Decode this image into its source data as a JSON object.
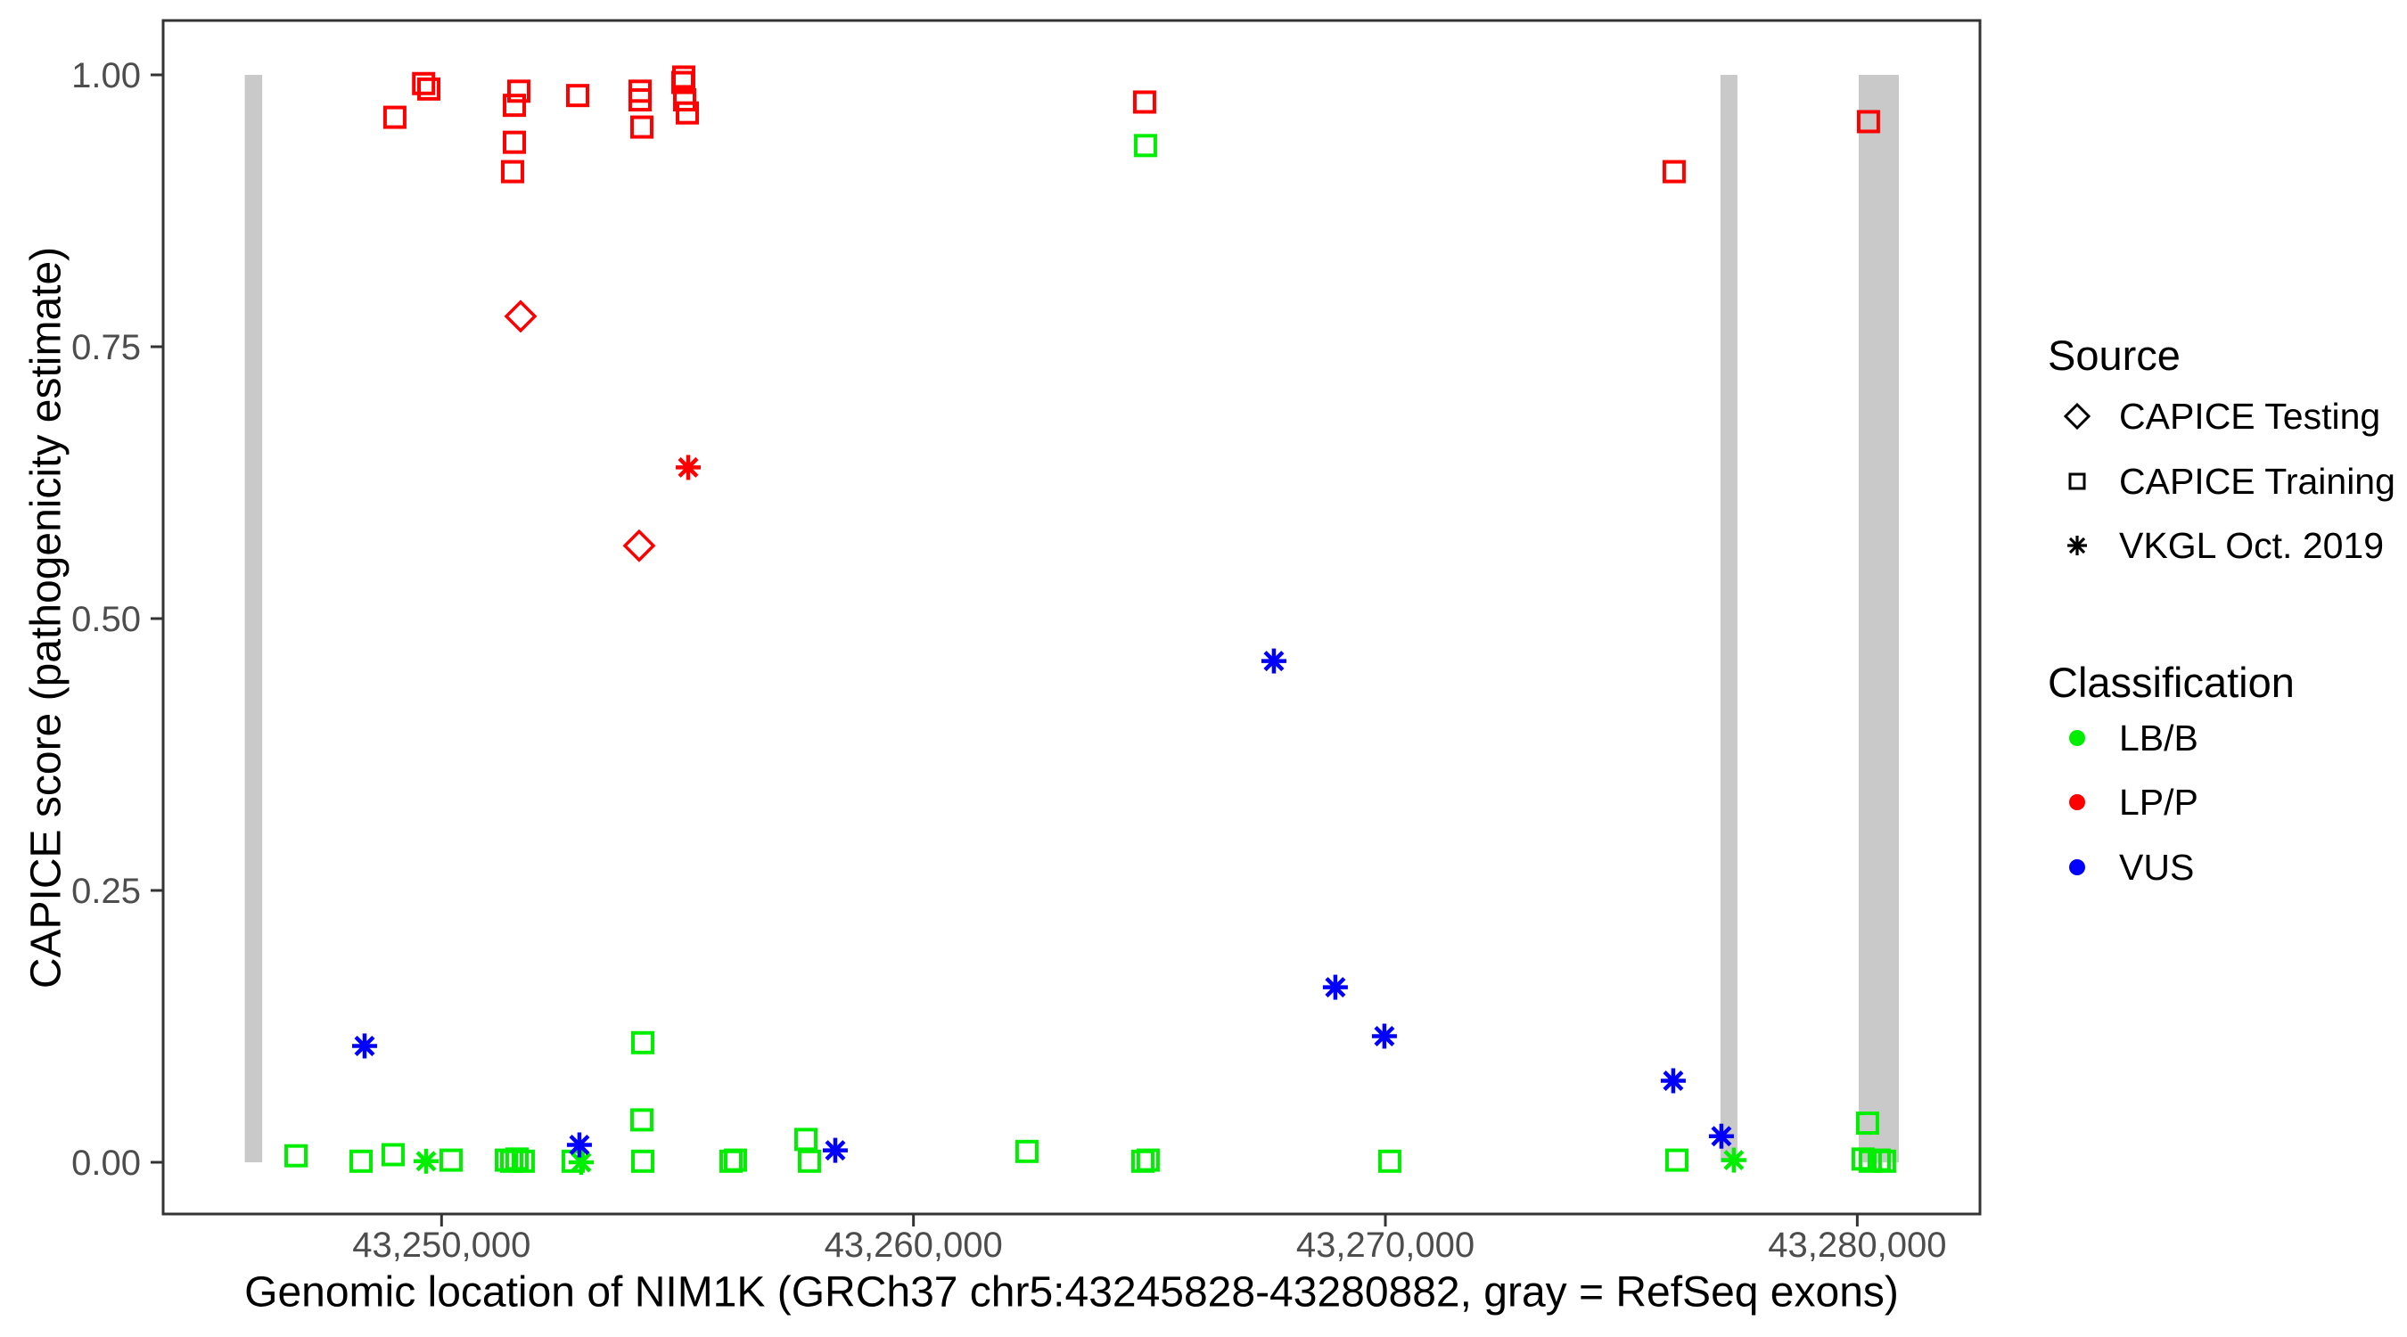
{
  "figure": {
    "x_axis": {
      "title": "Genomic location of NIM1K (GRCh37 chr5:43245828-43280882, gray = RefSeq exons)",
      "ticks": [
        {
          "label": "43,250,000",
          "value": 43250000
        },
        {
          "label": "43,260,000",
          "value": 43260000
        },
        {
          "label": "43,270,000",
          "value": 43270000
        },
        {
          "label": "43,280,000",
          "value": 43280000
        }
      ]
    },
    "y_axis": {
      "title": "CAPICE score (pathogenicity estimate)",
      "ticks": [
        {
          "label": "0.00",
          "value": 0.0
        },
        {
          "label": "0.25",
          "value": 0.25
        },
        {
          "label": "0.50",
          "value": 0.5
        },
        {
          "label": "0.75",
          "value": 0.75
        },
        {
          "label": "1.00",
          "value": 1.0
        }
      ]
    }
  },
  "legend": {
    "position": "right",
    "source": {
      "title": "Source",
      "items": [
        {
          "label": "CAPICE Testing",
          "symbol": "diamond"
        },
        {
          "label": "CAPICE Training",
          "symbol": "square"
        },
        {
          "label": "VKGL Oct. 2019",
          "symbol": "asterisk"
        }
      ]
    },
    "classification": {
      "title": "Classification",
      "items": [
        {
          "label": "LB/B",
          "color": "#00EE00"
        },
        {
          "label": "LP/P",
          "color": "#FF0000"
        },
        {
          "label": "VUS",
          "color": "#0000FF"
        }
      ]
    }
  },
  "colors": {
    "lb_b": "#00EE00",
    "lp_p": "#FF0000",
    "vus": "#0000FF",
    "legend_symbol": "#000000",
    "exon": "#C9C9C9",
    "panel_border": "#333333",
    "tick_label": "#4D4D4D"
  },
  "chart_data": {
    "type": "scatter",
    "title": "",
    "xlabel": "Genomic location of NIM1K (GRCh37 chr5:43245828-43280882, gray = RefSeq exons)",
    "ylabel": "CAPICE score (pathogenicity estimate)",
    "x_domain": [
      43244100,
      43282600
    ],
    "y_domain": [
      0,
      1
    ],
    "grid": false,
    "shape_by_source": {
      "CAPICE Testing": "diamond",
      "CAPICE Training": "square",
      "VKGL Oct. 2019": "asterisk"
    },
    "exons_gray": [
      {
        "start": 43245830,
        "end": 43246200
      },
      {
        "start": 43277100,
        "end": 43277460
      },
      {
        "start": 43280030,
        "end": 43280882
      }
    ],
    "points": [
      {
        "bp": 43249010,
        "score": 0.961,
        "source": "CAPICE Training",
        "classification": "LP/P"
      },
      {
        "bp": 43249620,
        "score": 0.992,
        "source": "CAPICE Training",
        "classification": "LP/P"
      },
      {
        "bp": 43249730,
        "score": 0.987,
        "source": "CAPICE Training",
        "classification": "LP/P"
      },
      {
        "bp": 43251505,
        "score": 0.911,
        "source": "CAPICE Training",
        "classification": "LP/P"
      },
      {
        "bp": 43251543,
        "score": 0.938,
        "source": "CAPICE Training",
        "classification": "LP/P"
      },
      {
        "bp": 43251543,
        "score": 0.972,
        "source": "CAPICE Training",
        "classification": "LP/P"
      },
      {
        "bp": 43251637,
        "score": 0.985,
        "source": "CAPICE Training",
        "classification": "LP/P"
      },
      {
        "bp": 43252884,
        "score": 0.981,
        "source": "CAPICE Training",
        "classification": "LP/P"
      },
      {
        "bp": 43254206,
        "score": 0.985,
        "source": "CAPICE Training",
        "classification": "LP/P"
      },
      {
        "bp": 43254206,
        "score": 0.977,
        "source": "CAPICE Training",
        "classification": "LP/P"
      },
      {
        "bp": 43254244,
        "score": 0.952,
        "source": "CAPICE Training",
        "classification": "LP/P"
      },
      {
        "bp": 43255113,
        "score": 0.993,
        "source": "CAPICE Training",
        "classification": "LP/P"
      },
      {
        "bp": 43255132,
        "score": 0.998,
        "source": "CAPICE Training",
        "classification": "LP/P"
      },
      {
        "bp": 43255151,
        "score": 0.977,
        "source": "CAPICE Training",
        "classification": "LP/P"
      },
      {
        "bp": 43255208,
        "score": 0.965,
        "source": "CAPICE Training",
        "classification": "LP/P"
      },
      {
        "bp": 43264898,
        "score": 0.975,
        "source": "CAPICE Training",
        "classification": "LP/P"
      },
      {
        "bp": 43276119,
        "score": 0.911,
        "source": "CAPICE Training",
        "classification": "LP/P"
      },
      {
        "bp": 43280237,
        "score": 0.957,
        "source": "CAPICE Training",
        "classification": "LP/P"
      },
      {
        "bp": 43251675,
        "score": 0.778,
        "source": "CAPICE Testing",
        "classification": "LP/P"
      },
      {
        "bp": 43254187,
        "score": 0.567,
        "source": "CAPICE Testing",
        "classification": "LP/P"
      },
      {
        "bp": 43255227,
        "score": 0.639,
        "source": "VKGL Oct. 2019",
        "classification": "LP/P"
      },
      {
        "bp": 43246915,
        "score": 0.006,
        "source": "CAPICE Training",
        "classification": "LB/B"
      },
      {
        "bp": 43248294,
        "score": 0.001,
        "source": "CAPICE Training",
        "classification": "LB/B"
      },
      {
        "bp": 43248973,
        "score": 0.007,
        "source": "CAPICE Training",
        "classification": "LB/B"
      },
      {
        "bp": 43249672,
        "score": 0.001,
        "source": "VKGL Oct. 2019",
        "classification": "LB/B"
      },
      {
        "bp": 43250201,
        "score": 0.002,
        "source": "CAPICE Training",
        "classification": "LB/B"
      },
      {
        "bp": 43251373,
        "score": 0.002,
        "source": "CAPICE Training",
        "classification": "LB/B"
      },
      {
        "bp": 43251486,
        "score": 0.001,
        "source": "CAPICE Training",
        "classification": "LB/B"
      },
      {
        "bp": 43251599,
        "score": 0.003,
        "source": "CAPICE Training",
        "classification": "LB/B"
      },
      {
        "bp": 43251731,
        "score": 0.001,
        "source": "CAPICE Training",
        "classification": "LB/B"
      },
      {
        "bp": 43252789,
        "score": 0.001,
        "source": "CAPICE Training",
        "classification": "LB/B"
      },
      {
        "bp": 43252959,
        "score": 0.0,
        "source": "VKGL Oct. 2019",
        "classification": "LB/B"
      },
      {
        "bp": 43254263,
        "score": 0.11,
        "source": "CAPICE Training",
        "classification": "LB/B"
      },
      {
        "bp": 43254244,
        "score": 0.039,
        "source": "CAPICE Training",
        "classification": "LB/B"
      },
      {
        "bp": 43254263,
        "score": 0.001,
        "source": "CAPICE Training",
        "classification": "LB/B"
      },
      {
        "bp": 43256133,
        "score": 0.001,
        "source": "CAPICE Training",
        "classification": "LB/B"
      },
      {
        "bp": 43256227,
        "score": 0.002,
        "source": "CAPICE Training",
        "classification": "LB/B"
      },
      {
        "bp": 43257720,
        "score": 0.021,
        "source": "CAPICE Training",
        "classification": "LB/B"
      },
      {
        "bp": 43257795,
        "score": 0.001,
        "source": "CAPICE Training",
        "classification": "LB/B"
      },
      {
        "bp": 43262404,
        "score": 0.01,
        "source": "CAPICE Training",
        "classification": "LB/B"
      },
      {
        "bp": 43264860,
        "score": 0.001,
        "source": "CAPICE Training",
        "classification": "LB/B"
      },
      {
        "bp": 43264973,
        "score": 0.002,
        "source": "CAPICE Training",
        "classification": "LB/B"
      },
      {
        "bp": 43264917,
        "score": 0.935,
        "source": "CAPICE Training",
        "classification": "LB/B"
      },
      {
        "bp": 43270093,
        "score": 0.001,
        "source": "CAPICE Training",
        "classification": "LB/B"
      },
      {
        "bp": 43276176,
        "score": 0.002,
        "source": "CAPICE Training",
        "classification": "LB/B"
      },
      {
        "bp": 43277384,
        "score": 0.002,
        "source": "VKGL Oct. 2019",
        "classification": "LB/B"
      },
      {
        "bp": 43280218,
        "score": 0.036,
        "source": "CAPICE Training",
        "classification": "LB/B"
      },
      {
        "bp": 43280124,
        "score": 0.003,
        "source": "CAPICE Training",
        "classification": "LB/B"
      },
      {
        "bp": 43280275,
        "score": 0.001,
        "source": "CAPICE Training",
        "classification": "LB/B"
      },
      {
        "bp": 43280464,
        "score": 0.002,
        "source": "CAPICE Training",
        "classification": "LB/B"
      },
      {
        "bp": 43280577,
        "score": 0.001,
        "source": "CAPICE Training",
        "classification": "LB/B"
      },
      {
        "bp": 43248369,
        "score": 0.107,
        "source": "VKGL Oct. 2019",
        "classification": "VUS"
      },
      {
        "bp": 43252921,
        "score": 0.016,
        "source": "VKGL Oct. 2019",
        "classification": "VUS"
      },
      {
        "bp": 43258343,
        "score": 0.011,
        "source": "VKGL Oct. 2019",
        "classification": "VUS"
      },
      {
        "bp": 43267637,
        "score": 0.461,
        "source": "VKGL Oct. 2019",
        "classification": "VUS"
      },
      {
        "bp": 43268940,
        "score": 0.161,
        "source": "VKGL Oct. 2019",
        "classification": "VUS"
      },
      {
        "bp": 43269979,
        "score": 0.116,
        "source": "VKGL Oct. 2019",
        "classification": "VUS"
      },
      {
        "bp": 43276100,
        "score": 0.075,
        "source": "VKGL Oct. 2019",
        "classification": "VUS"
      },
      {
        "bp": 43277120,
        "score": 0.024,
        "source": "VKGL Oct. 2019",
        "classification": "VUS"
      }
    ]
  }
}
